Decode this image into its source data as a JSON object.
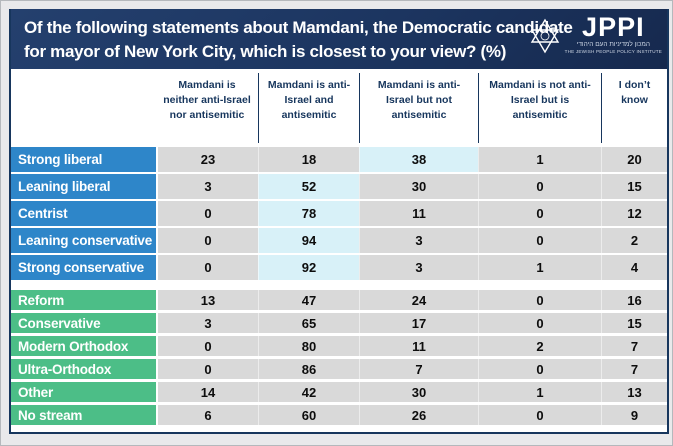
{
  "header": {
    "title_line1": "Of the following statements about Mamdani, the Democratic candidate",
    "title_line2": "for mayor of New York City, which is closest to your view?  (%)",
    "logo": {
      "acronym": "JPPI",
      "hebrew": "המכון למדיניות העם היהודי",
      "institute": "THE JEWISH PEOPLE POLICY INSTITUTE",
      "star_icon": "star-of-david"
    }
  },
  "colors": {
    "navy": "#1c3560",
    "political_row": "#2e86c9",
    "religious_row": "#4cbe87",
    "cell_gray": "#d9d9d9",
    "highlight_cyan": "#d8f1f8",
    "header_text": "#17365d"
  },
  "chart_data": {
    "type": "table",
    "title": "Of the following statements about Mamdani, the Democratic candidate for mayor of New York City, which is closest to your view? (%)",
    "unit": "percent",
    "columns": [
      "Mamdani is neither anti-Israel nor antisemitic",
      "Mamdani is anti-Israel and antisemitic",
      "Mamdani is anti-Israel but not antisemitic",
      "Mamdani is not anti-Israel but is antisemitic",
      "I don’t know"
    ],
    "highlight_note": "highlight = index of cyan-highlighted cell in row, null if none",
    "sections": [
      {
        "id": "political-ideology",
        "row_color": "#2e86c9",
        "rows": [
          {
            "label": "Strong liberal",
            "values": [
              23,
              18,
              38,
              1,
              20
            ],
            "highlight": 2
          },
          {
            "label": "Leaning liberal",
            "values": [
              3,
              52,
              30,
              0,
              15
            ],
            "highlight": 1
          },
          {
            "label": "Centrist",
            "values": [
              0,
              78,
              11,
              0,
              12
            ],
            "highlight": 1
          },
          {
            "label": "Leaning conservative",
            "values": [
              0,
              94,
              3,
              0,
              2
            ],
            "highlight": 1
          },
          {
            "label": "Strong conservative",
            "values": [
              0,
              92,
              3,
              1,
              4
            ],
            "highlight": 1
          }
        ]
      },
      {
        "id": "religious-stream",
        "row_color": "#4cbe87",
        "rows": [
          {
            "label": "Reform",
            "values": [
              13,
              47,
              24,
              0,
              16
            ],
            "highlight": null
          },
          {
            "label": "Conservative",
            "values": [
              3,
              65,
              17,
              0,
              15
            ],
            "highlight": null
          },
          {
            "label": "Modern Orthodox",
            "values": [
              0,
              80,
              11,
              2,
              7
            ],
            "highlight": null
          },
          {
            "label": "Ultra-Orthodox",
            "values": [
              0,
              86,
              7,
              0,
              7
            ],
            "highlight": null
          },
          {
            "label": "Other",
            "values": [
              14,
              42,
              30,
              1,
              13
            ],
            "highlight": null
          },
          {
            "label": "No stream",
            "values": [
              6,
              60,
              26,
              0,
              9
            ],
            "highlight": null
          }
        ]
      }
    ]
  }
}
